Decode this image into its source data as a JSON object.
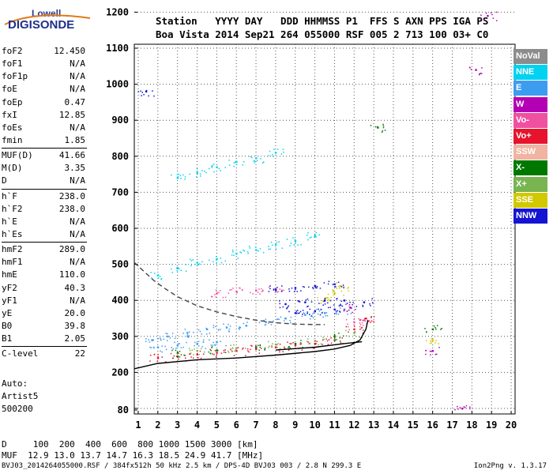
{
  "logo": {
    "brand": "Lowell",
    "product": "DIGISONDE"
  },
  "header": {
    "line1": "Station   YYYY DAY   DDD HHMMSS P1  FFS S AXN PPS IGA PS",
    "line2": "Boa Vista 2014 Sep21 264 055000 RSF 005 2 713 100 03+ C0"
  },
  "params": [
    {
      "name": "foF2",
      "value": "12.450"
    },
    {
      "name": "foF1",
      "value": "N/A"
    },
    {
      "name": "foF1p",
      "value": "N/A"
    },
    {
      "name": "foE",
      "value": "N/A"
    },
    {
      "name": "foEp",
      "value": "0.47"
    },
    {
      "name": "fxI",
      "value": "12.85"
    },
    {
      "name": "foEs",
      "value": "N/A"
    },
    {
      "name": "fmin",
      "value": "1.85"
    },
    {
      "name": "MUF(D)",
      "value": "41.66"
    },
    {
      "name": "M(D)",
      "value": "3.35"
    },
    {
      "name": "D",
      "value": "N/A"
    },
    {
      "name": "h`F",
      "value": "238.0"
    },
    {
      "name": "h`F2",
      "value": "238.0"
    },
    {
      "name": "h`E",
      "value": "N/A"
    },
    {
      "name": "h`Es",
      "value": "N/A"
    },
    {
      "name": "hmF2",
      "value": "289.0"
    },
    {
      "name": "hmF1",
      "value": "N/A"
    },
    {
      "name": "hmE",
      "value": "110.0"
    },
    {
      "name": "yF2",
      "value": "40.3"
    },
    {
      "name": "yF1",
      "value": "N/A"
    },
    {
      "name": "yE",
      "value": "20.0"
    },
    {
      "name": "B0",
      "value": "39.8"
    },
    {
      "name": "B1",
      "value": "2.05"
    },
    {
      "name": "C-level",
      "value": "22"
    }
  ],
  "auto": {
    "label": "Auto:",
    "artist": "Artist5",
    "version": "500200"
  },
  "legend": [
    {
      "label": "NoVal",
      "color": "#8c8c8c"
    },
    {
      "label": "NNE",
      "color": "#00d2f0"
    },
    {
      "label": "E",
      "color": "#3c9cf0"
    },
    {
      "label": "W",
      "color": "#b400b4"
    },
    {
      "label": "Vo-",
      "color": "#f050a0"
    },
    {
      "label": "Vo+",
      "color": "#e6142d"
    },
    {
      "label": "SSW",
      "color": "#f0b4a0"
    },
    {
      "label": "X-",
      "color": "#007800"
    },
    {
      "label": "X+",
      "color": "#78b450"
    },
    {
      "label": "SSE",
      "color": "#d2c800"
    },
    {
      "label": "NNW",
      "color": "#1414d2"
    }
  ],
  "distance_table": {
    "line1": "D     100  200  400  600  800 1000 1500 3000 [km]",
    "line2": "MUF  12.9 13.0 13.7 14.7 16.3 18.5 24.9 41.7 [MHz]"
  },
  "footer": {
    "file": "BVJ03_2014264055000.RSF / 384fx512h 50 kHz 2.5 km / DPS-4D BVJ03 003 / 2.8 N 299.3 E",
    "version": "Ion2Png v. 1.3.17"
  },
  "chart_data": {
    "type": "scatter",
    "title": "",
    "xlabel": "",
    "ylabel": "",
    "xlim": [
      0.8,
      20.2
    ],
    "ylim": [
      80,
      1205
    ],
    "x_ticks": [
      1,
      2,
      3,
      4,
      5,
      6,
      7,
      8,
      9,
      10,
      11,
      12,
      13,
      14,
      15,
      16,
      17,
      18,
      19,
      20
    ],
    "y_ticks": [
      80,
      100,
      200,
      300,
      400,
      500,
      600,
      700,
      800,
      900,
      1000,
      1100,
      1200
    ],
    "grid": true,
    "series": [
      {
        "name": "NNE",
        "color": "#00d2f0",
        "points": [
          [
            2,
            470
          ],
          [
            3,
            490
          ],
          [
            4,
            505
          ],
          [
            5,
            515
          ],
          [
            6,
            530
          ],
          [
            7,
            540
          ],
          [
            8,
            555
          ],
          [
            9,
            565
          ],
          [
            10,
            580
          ],
          [
            3,
            740
          ],
          [
            4,
            755
          ],
          [
            5,
            770
          ],
          [
            6,
            785
          ],
          [
            7,
            795
          ],
          [
            8,
            810
          ]
        ]
      },
      {
        "name": "E",
        "color": "#3c9cf0",
        "points": [
          [
            1.7,
            290
          ],
          [
            2.5,
            300
          ],
          [
            3.5,
            310
          ],
          [
            4.5,
            320
          ],
          [
            5.5,
            325
          ],
          [
            6.5,
            330
          ],
          [
            7.5,
            340
          ],
          [
            8.5,
            350
          ],
          [
            9.5,
            360
          ],
          [
            10.5,
            365
          ],
          [
            11.5,
            375
          ],
          [
            2,
            270
          ],
          [
            3,
            275
          ],
          [
            4,
            280
          ],
          [
            5,
            285
          ]
        ]
      },
      {
        "name": "W",
        "color": "#b400b4",
        "points": [
          [
            16,
            260
          ],
          [
            17.5,
            100
          ],
          [
            18.8,
            1190
          ],
          [
            18.2,
            1040
          ],
          [
            11.8,
            380
          ]
        ]
      },
      {
        "name": "Vo-",
        "color": "#f050a0",
        "points": [
          [
            5,
            420
          ],
          [
            6,
            425
          ],
          [
            7,
            428
          ],
          [
            8,
            432
          ],
          [
            12,
            340
          ],
          [
            12.5,
            345
          ]
        ]
      },
      {
        "name": "Vo+",
        "color": "#e6142d",
        "points": [
          [
            2,
            240
          ],
          [
            3,
            245
          ],
          [
            4,
            250
          ],
          [
            5,
            255
          ],
          [
            6,
            260
          ],
          [
            7,
            265
          ],
          [
            8,
            270
          ],
          [
            9,
            275
          ],
          [
            10,
            280
          ],
          [
            11,
            290
          ],
          [
            12,
            320
          ],
          [
            12.6,
            350
          ]
        ]
      },
      {
        "name": "X-",
        "color": "#007800",
        "points": [
          [
            3,
            255
          ],
          [
            5,
            262
          ],
          [
            7,
            270
          ],
          [
            9,
            280
          ],
          [
            11,
            300
          ],
          [
            13.2,
            880
          ],
          [
            16,
            320
          ]
        ]
      },
      {
        "name": "X+",
        "color": "#78b450",
        "points": [
          [
            4,
            260
          ],
          [
            6,
            268
          ],
          [
            8,
            278
          ],
          [
            10,
            288
          ],
          [
            12,
            310
          ]
        ]
      },
      {
        "name": "SSE",
        "color": "#d2c800",
        "points": [
          [
            10.5,
            405
          ],
          [
            11,
            420
          ],
          [
            11.3,
            440
          ],
          [
            16,
            290
          ]
        ]
      },
      {
        "name": "NNW",
        "color": "#1414d2",
        "points": [
          [
            8,
            430
          ],
          [
            9,
            435
          ],
          [
            10,
            440
          ],
          [
            11,
            445
          ],
          [
            8.5,
            390
          ],
          [
            9.5,
            395
          ],
          [
            10.5,
            400
          ],
          [
            11.5,
            400
          ],
          [
            12.5,
            395
          ],
          [
            9,
            365
          ],
          [
            10,
            370
          ],
          [
            11,
            375
          ],
          [
            1.4,
            980
          ]
        ]
      }
    ],
    "curves": [
      {
        "name": "profile",
        "style": "solid",
        "color": "#000",
        "points": [
          [
            0.8,
            210
          ],
          [
            2,
            225
          ],
          [
            4,
            235
          ],
          [
            6,
            240
          ],
          [
            8,
            248
          ],
          [
            10,
            258
          ],
          [
            11,
            265
          ],
          [
            11.8,
            275
          ],
          [
            12.3,
            290
          ],
          [
            12.6,
            320
          ],
          [
            12.7,
            345
          ]
        ]
      },
      {
        "name": "profile-lower",
        "style": "solid",
        "color": "#000",
        "points": [
          [
            8,
            262
          ],
          [
            10,
            270
          ],
          [
            11.5,
            280
          ],
          [
            12.4,
            285
          ]
        ]
      },
      {
        "name": "model",
        "style": "dashed",
        "color": "#000",
        "points": [
          [
            0.8,
            505
          ],
          [
            1.3,
            480
          ],
          [
            1.8,
            455
          ],
          [
            2.3,
            435
          ],
          [
            3,
            410
          ],
          [
            4,
            385
          ],
          [
            5,
            368
          ],
          [
            6,
            355
          ],
          [
            7,
            345
          ],
          [
            8,
            338
          ],
          [
            9,
            334
          ],
          [
            10,
            333
          ],
          [
            10.5,
            333
          ]
        ]
      }
    ]
  }
}
